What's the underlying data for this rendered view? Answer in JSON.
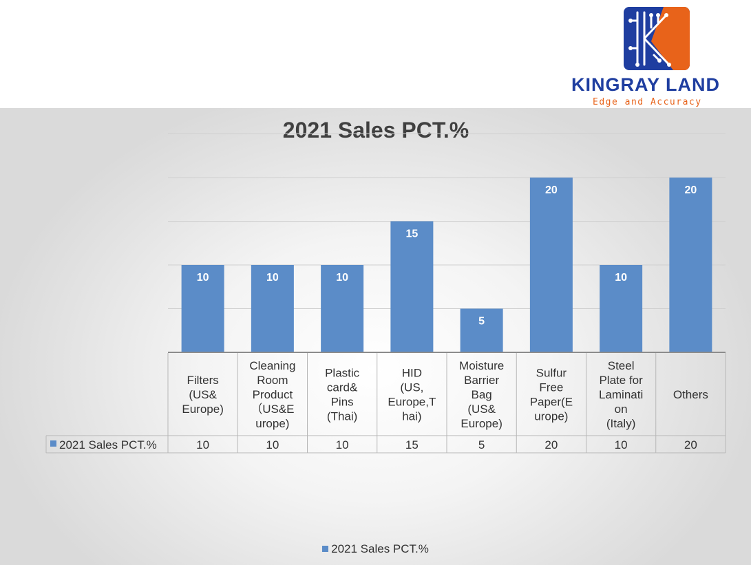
{
  "brand": {
    "name": "KINGRAY LAND",
    "tagline": "Edge and Accuracy",
    "colors": {
      "primary": "#1f3ea0",
      "accent": "#e8631a"
    }
  },
  "chart_data": {
    "type": "bar",
    "title": "2021 Sales PCT.%",
    "categories": [
      "Filters (US& Europe)",
      "Cleaning Room Product (US&E urope)",
      "Plastic card& Pins (Thai)",
      "HID (US, Europe,T hai)",
      "Moisture Barrier Bag (US& Europe)",
      "Sulfur Free Paper(E urope)",
      "Steel Plate for Laminati on (Italy)",
      "Others"
    ],
    "category_lines": [
      [
        "Filters",
        "(US&",
        "Europe)"
      ],
      [
        "Cleaning",
        "Room",
        "Product",
        "（US&E",
        "urope)"
      ],
      [
        "Plastic",
        "card&",
        "Pins",
        "(Thai)"
      ],
      [
        "HID",
        "(US,",
        "Europe,T",
        "hai)"
      ],
      [
        "Moisture",
        "Barrier",
        "Bag",
        "(US&",
        "Europe)"
      ],
      [
        "Sulfur",
        "Free",
        "Paper(E",
        "urope)"
      ],
      [
        "Steel",
        "Plate for",
        "Laminati",
        "on",
        "(Italy)"
      ],
      [
        "Others"
      ]
    ],
    "series": [
      {
        "name": "2021 Sales PCT.%",
        "values": [
          10,
          10,
          10,
          15,
          5,
          20,
          10,
          20
        ],
        "color": "#5b8cc8"
      }
    ],
    "ylim": [
      0,
      25
    ],
    "grid": true,
    "data_labels": true,
    "data_table": true,
    "legend": "bottom"
  }
}
